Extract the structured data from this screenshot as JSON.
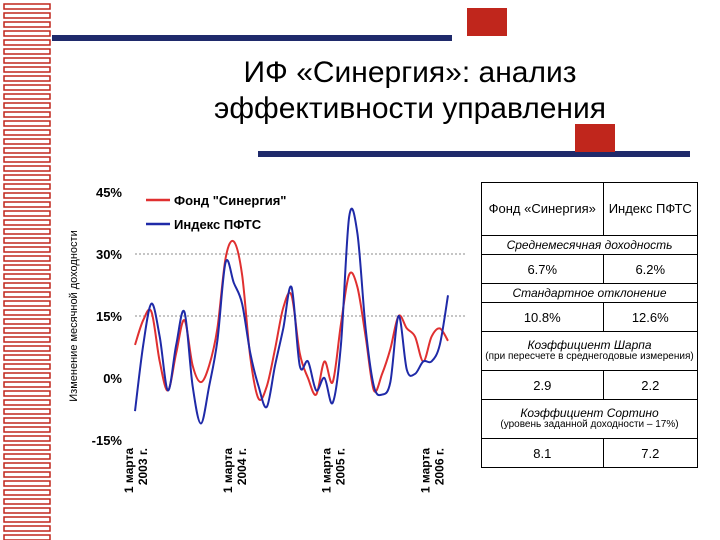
{
  "slide": {
    "title_line1": "ИФ «Синергия»: анализ",
    "title_line2": "эффективности управления"
  },
  "colors": {
    "synergy": "#e03030",
    "pfts": "#1f2aa8",
    "accent_red": "#c0261c",
    "accent_navy": "#1f2a6b"
  },
  "table": {
    "col1": "Фонд «Синергия»",
    "col2": "Индекс ПФТС",
    "rows": [
      {
        "label": "Среднемесячная доходность",
        "v1": "6.7%",
        "v2": "6.2%"
      },
      {
        "label": "Стандартное отклонение",
        "v1": "10.8%",
        "v2": "12.6%"
      },
      {
        "label": "Коэффициент Шарпа",
        "note": "(при пересчете в среднегодовые измерения)",
        "v1": "2.9",
        "v2": "2.2"
      },
      {
        "label": "Коэффициент Сортино",
        "note": "(уровень заданной доходности – 17%)",
        "v1": "8.1",
        "v2": "7.2"
      }
    ]
  },
  "chart_data": {
    "type": "line",
    "ylabel": "Изменение месячной доходности",
    "ylim": [
      -15,
      45
    ],
    "y_ticks": [
      "45%",
      "30%",
      "15%",
      "0%",
      "-15%"
    ],
    "y_tick_values": [
      45,
      30,
      15,
      0,
      -15
    ],
    "x_ticks": [
      "1 марта 2003 г.",
      "1 марта 2004 г.",
      "1 марта 2005 г.",
      "1 марта 2006 г."
    ],
    "x_tick_index": [
      0,
      12,
      24,
      36
    ],
    "grid": "horizontal dashed at 30 and 15",
    "legend_position": "top-left",
    "series": [
      {
        "name": "Фонд \"Синергия\"",
        "color": "#e03030",
        "values": [
          8,
          14,
          16,
          4,
          -3,
          6,
          14,
          3,
          -1,
          3,
          12,
          29,
          33,
          25,
          5,
          -5,
          -2,
          7,
          17,
          20,
          6,
          0,
          -4,
          4,
          -1,
          13,
          25,
          22,
          10,
          -3,
          1,
          7,
          15,
          12,
          10,
          4,
          10,
          12,
          9
        ]
      },
      {
        "name": "Индекс ПФТС",
        "color": "#1f2aa8",
        "values": [
          -8,
          8,
          18,
          10,
          -3,
          8,
          16,
          -2,
          -11,
          -2,
          9,
          28,
          23,
          18,
          6,
          -2,
          -7,
          3,
          12,
          22,
          3,
          4,
          -3,
          0,
          -6,
          8,
          39,
          35,
          12,
          -2,
          -4,
          -1,
          15,
          2,
          1,
          4,
          4,
          8,
          20
        ]
      }
    ]
  }
}
